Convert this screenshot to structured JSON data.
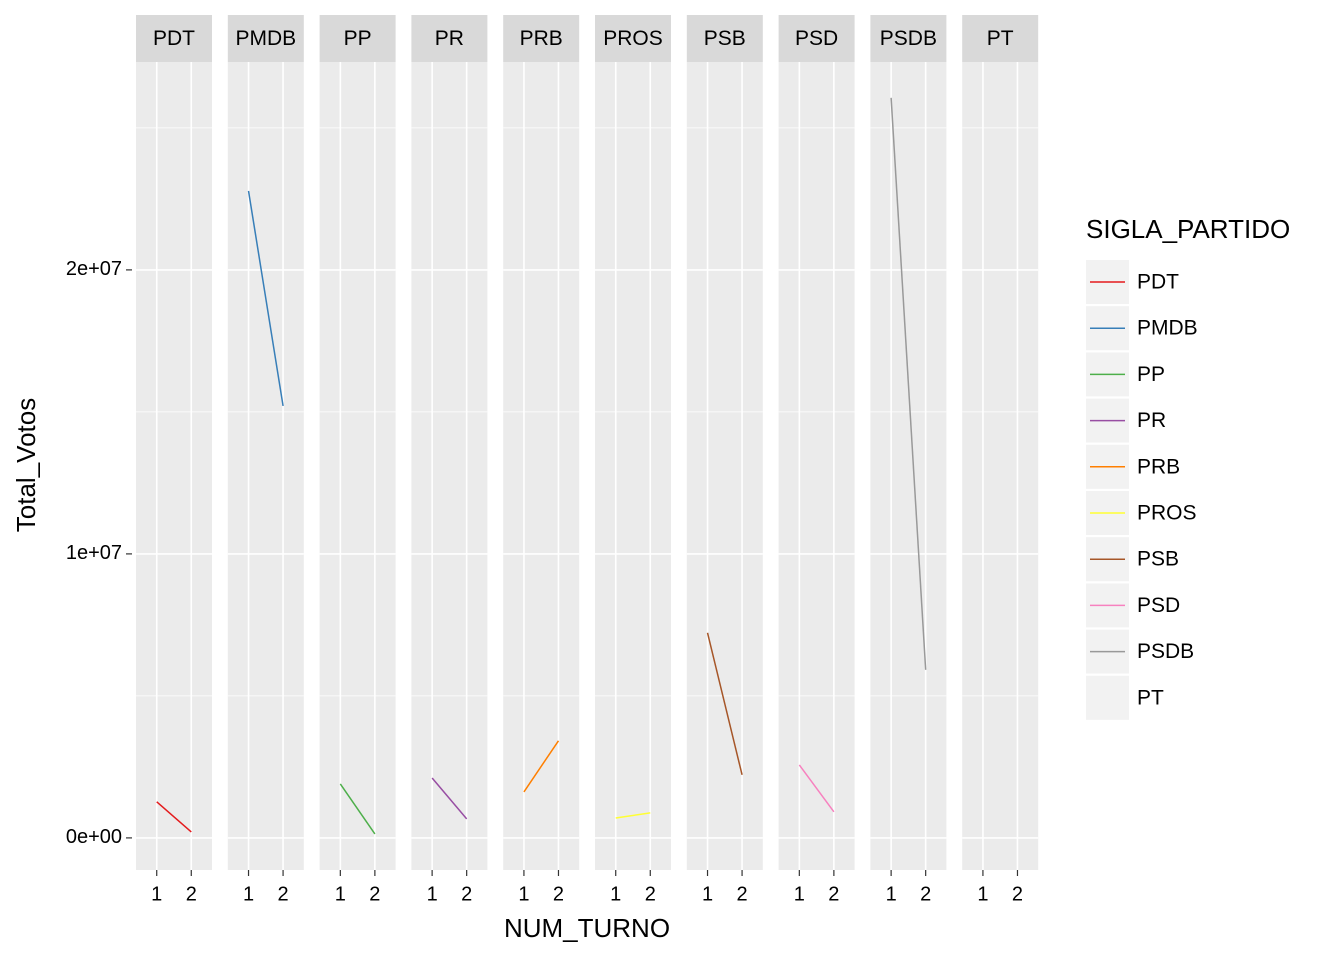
{
  "chart_data": {
    "type": "line",
    "facet": true,
    "x_label": "NUM_TURNO",
    "y_label": "Total_Votos",
    "legend_title": "SIGLA_PARTIDO",
    "categories": [
      "1",
      "2"
    ],
    "series": [
      {
        "name": "PDT",
        "color": "#E41A1C",
        "values": [
          1270000,
          210000
        ]
      },
      {
        "name": "PMDB",
        "color": "#377EB8",
        "values": [
          22780000,
          15210000
        ]
      },
      {
        "name": "PP",
        "color": "#4DAF4A",
        "values": [
          1900000,
          140000
        ]
      },
      {
        "name": "PR",
        "color": "#984EA3",
        "values": [
          2110000,
          670000
        ]
      },
      {
        "name": "PRB",
        "color": "#FF7F00",
        "values": [
          1620000,
          3420000
        ]
      },
      {
        "name": "PROS",
        "color": "#FFFF33",
        "values": [
          700000,
          880000
        ]
      },
      {
        "name": "PSB",
        "color": "#A65628",
        "values": [
          7220000,
          2220000
        ]
      },
      {
        "name": "PSD",
        "color": "#F781BF",
        "values": [
          2570000,
          920000
        ]
      },
      {
        "name": "PSDB",
        "color": "#999999",
        "values": [
          26060000,
          5920000
        ]
      },
      {
        "name": "PT",
        "values": [
          null,
          null
        ]
      }
    ],
    "ylim": [
      -1130000,
      27320000
    ],
    "yticks": [
      {
        "value": 0,
        "label": "0e+00"
      },
      {
        "value": 10000000,
        "label": "1e+07"
      },
      {
        "value": 20000000,
        "label": "2e+07"
      }
    ],
    "y_minor_ticks": [
      5000000,
      15000000,
      25000000
    ],
    "grid": true
  }
}
